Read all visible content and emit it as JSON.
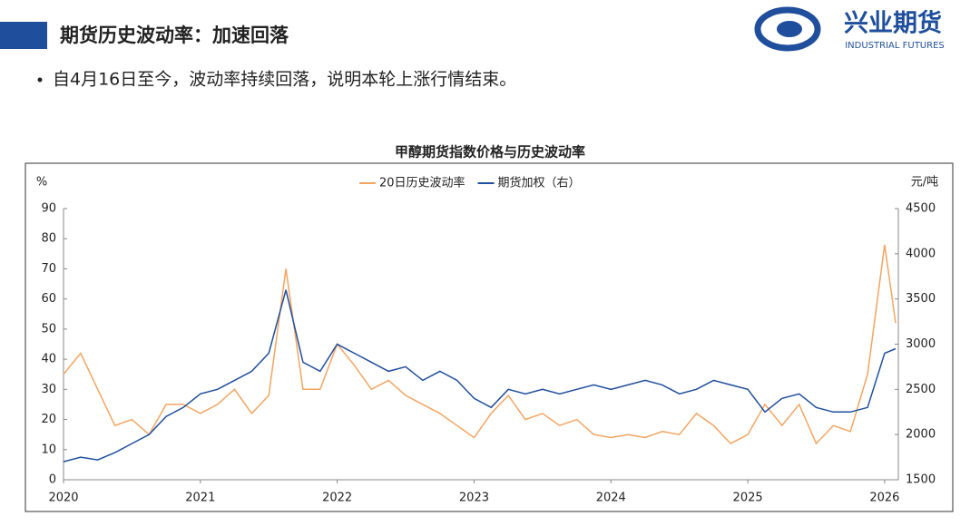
{
  "header": {
    "title": "期货历史波动率：加速回落",
    "logo_name": "兴业期货",
    "logo_subtitle": "INDUSTRIAL FUTURES"
  },
  "bullet": "自4月16日至今，波动率持续回落，说明本轮上涨行情结束。",
  "chart_data": {
    "type": "line",
    "title": "甲醇期货指数价格与历史波动率",
    "y_label": "%",
    "y2_label": "元/吨",
    "x": [
      2020,
      2020.125,
      2020.25,
      2020.375,
      2020.5,
      2020.625,
      2020.75,
      2020.875,
      2021,
      2021.125,
      2021.25,
      2021.375,
      2021.5,
      2021.625,
      2021.75,
      2021.875,
      2022,
      2022.125,
      2022.25,
      2022.375,
      2022.5,
      2022.625,
      2022.75,
      2022.875,
      2023,
      2023.125,
      2023.25,
      2023.375,
      2023.5,
      2023.625,
      2023.75,
      2023.875,
      2024,
      2024.125,
      2024.25,
      2024.375,
      2024.5,
      2024.625,
      2024.75,
      2024.875,
      2025,
      2025.125,
      2025.25,
      2025.375,
      2025.5,
      2025.625,
      2025.75,
      2025.875,
      2026,
      2026.08
    ],
    "series": [
      {
        "name": "20日历史波动率",
        "color": "#f4a460",
        "values": [
          35,
          42,
          30,
          18,
          20,
          15,
          25,
          25,
          22,
          25,
          30,
          22,
          28,
          70,
          30,
          30,
          45,
          38,
          30,
          33,
          28,
          25,
          22,
          18,
          14,
          22,
          28,
          20,
          22,
          18,
          20,
          15,
          14,
          15,
          14,
          16,
          15,
          22,
          18,
          12,
          15,
          25,
          18,
          25,
          12,
          18,
          16,
          35,
          78,
          52
        ]
      },
      {
        "name": "期货加权（右）",
        "color": "#1f4e9c",
        "axis": "y2",
        "values": [
          1700,
          1750,
          1720,
          1800,
          1900,
          2000,
          2200,
          2300,
          2450,
          2500,
          2600,
          2700,
          2900,
          3600,
          2800,
          2700,
          3000,
          2900,
          2800,
          2700,
          2750,
          2600,
          2700,
          2600,
          2400,
          2300,
          2500,
          2450,
          2500,
          2450,
          2500,
          2550,
          2500,
          2550,
          2600,
          2550,
          2450,
          2500,
          2600,
          2550,
          2500,
          2250,
          2400,
          2450,
          2300,
          2250,
          2250,
          2300,
          2900,
          2950
        ]
      }
    ],
    "xlim": [
      2020,
      2026.1
    ],
    "xticks": [
      2020,
      2021,
      2022,
      2023,
      2024,
      2025,
      2026
    ],
    "ylim": [
      0,
      90
    ],
    "yticks": [
      0,
      10,
      20,
      30,
      40,
      50,
      60,
      70,
      80,
      90
    ],
    "y2lim": [
      1500,
      4500
    ],
    "y2ticks": [
      1500,
      2000,
      2500,
      3000,
      3500,
      4000,
      4500
    ]
  }
}
